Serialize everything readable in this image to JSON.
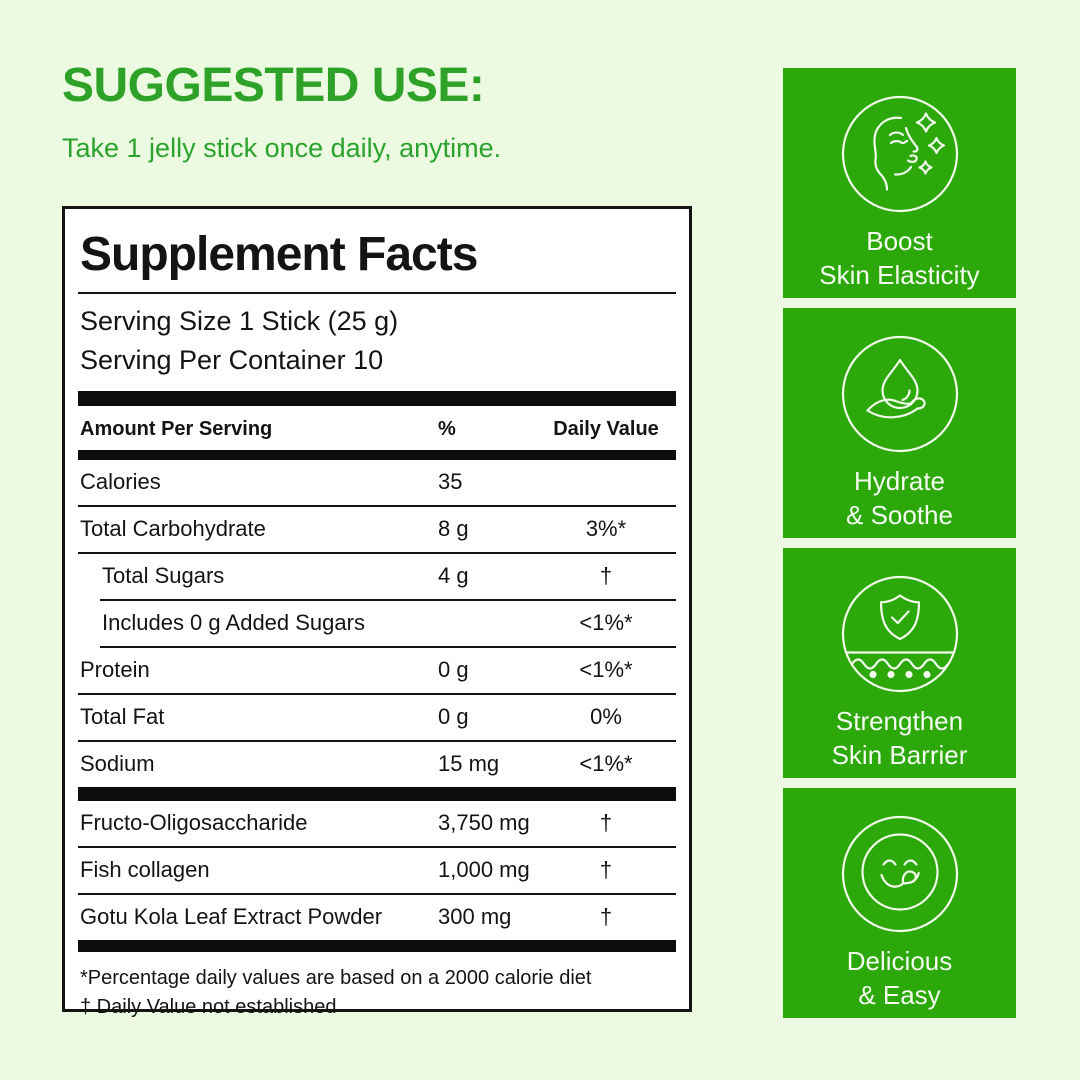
{
  "suggested_use": {
    "title": "SUGGESTED USE:",
    "subtitle": "Take 1 jelly stick once daily, anytime."
  },
  "supplement_facts": {
    "title": "Supplement Facts",
    "serving_size": "Serving Size 1 Stick (25 g)",
    "servings_per_container": "Serving Per Container 10",
    "header": {
      "amount": "Amount Per Serving",
      "percent": "%",
      "daily_value": "Daily Value"
    },
    "rows": [
      {
        "name": "Calories",
        "amount": "35",
        "dv": "",
        "indent": false
      },
      {
        "name": "Total Carbohydrate",
        "amount": "8 g",
        "dv": "3%*",
        "indent": false
      },
      {
        "name": "Total Sugars",
        "amount": "4 g",
        "dv": "†",
        "indent": true
      },
      {
        "name": "Includes 0 g Added Sugars",
        "amount": "",
        "dv": "<1%*",
        "indent": true
      },
      {
        "name": "Protein",
        "amount": "0 g",
        "dv": "<1%*",
        "indent": false
      },
      {
        "name": "Total Fat",
        "amount": "0 g",
        "dv": "0%",
        "indent": false
      },
      {
        "name": "Sodium",
        "amount": "15 mg",
        "dv": "<1%*",
        "indent": false
      }
    ],
    "ingredient_rows": [
      {
        "name": "Fructo-Oligosaccharide",
        "amount": "3,750 mg",
        "dv": "†"
      },
      {
        "name": "Fish collagen",
        "amount": "1,000 mg",
        "dv": "†"
      },
      {
        "name": "Gotu Kola Leaf Extract Powder",
        "amount": "300 mg",
        "dv": "†"
      }
    ],
    "footnotes": [
      "*Percentage daily values are based on a 2000 calorie diet",
      "† Daily Value not established"
    ]
  },
  "benefits": [
    {
      "icon": "face-sparkles-icon",
      "lines": [
        "Boost",
        "Skin Elasticity"
      ]
    },
    {
      "icon": "water-drop-hand-icon",
      "lines": [
        "Hydrate",
        "& Soothe"
      ]
    },
    {
      "icon": "shield-check-icon",
      "lines": [
        "Strengthen",
        "Skin Barrier"
      ]
    },
    {
      "icon": "smiley-tongue-icon",
      "lines": [
        "Delicious",
        "& Easy"
      ]
    }
  ],
  "colors": {
    "background": "#ebfae0",
    "heading_green": "#2ea128",
    "card_green": "#2ca80a",
    "text_dark": "#141414",
    "card_text": "#f4fcf0"
  }
}
